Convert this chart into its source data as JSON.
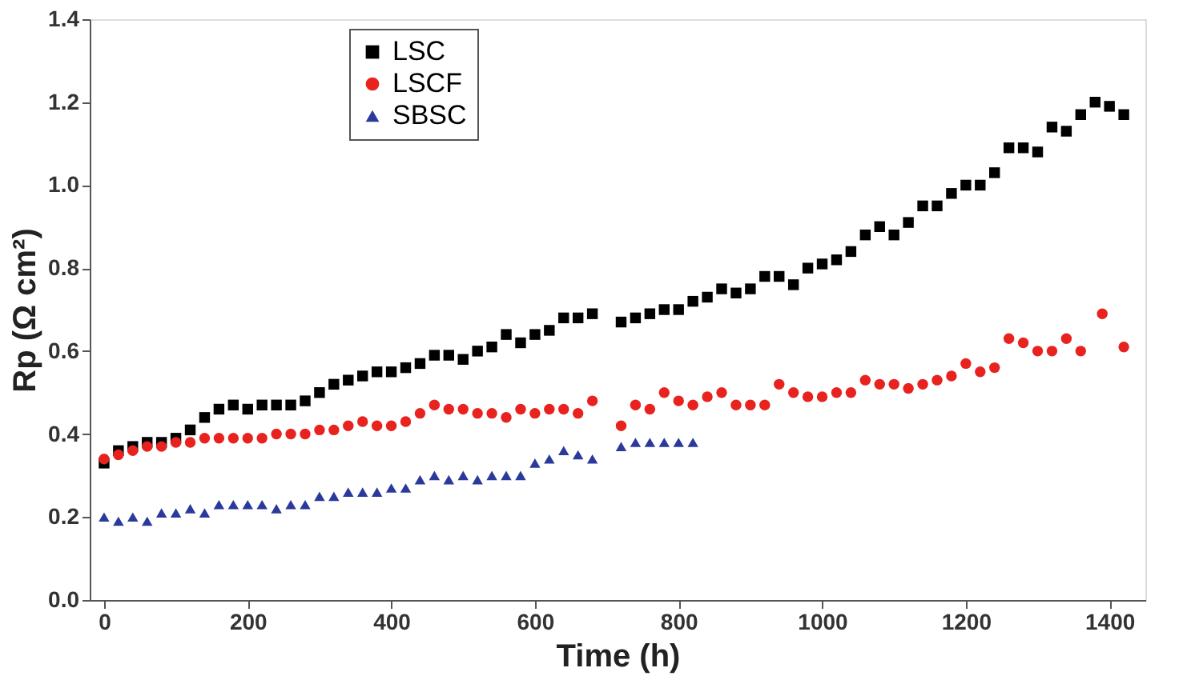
{
  "chart_data": {
    "type": "scatter",
    "xlabel": "Time (h)",
    "ylabel": "Rp (Ω cm²)",
    "xlim": [
      -20,
      1450
    ],
    "ylim": [
      0,
      1.4
    ],
    "xticks": [
      0,
      200,
      400,
      600,
      800,
      1000,
      1200,
      1400
    ],
    "yticks": [
      {
        "value": 0,
        "label": "0.0"
      },
      0.2,
      0.4,
      0.6,
      0.8,
      {
        "value": 1,
        "label": "1.0"
      },
      1.2,
      1.4
    ],
    "grid": false,
    "legend": "top",
    "series": [
      {
        "name": "LSC",
        "color": "#000000",
        "marker": "square",
        "x": [
          0,
          20,
          40,
          60,
          80,
          100,
          120,
          140,
          160,
          180,
          200,
          220,
          240,
          260,
          280,
          300,
          320,
          340,
          360,
          380,
          400,
          420,
          440,
          460,
          480,
          500,
          520,
          540,
          560,
          580,
          600,
          620,
          640,
          660,
          680,
          720,
          740,
          760,
          780,
          800,
          820,
          840,
          860,
          880,
          900,
          920,
          940,
          960,
          980,
          1000,
          1020,
          1040,
          1060,
          1080,
          1100,
          1120,
          1140,
          1160,
          1180,
          1200,
          1220,
          1240,
          1260,
          1280,
          1300,
          1320,
          1340,
          1360,
          1380,
          1400,
          1420
        ],
        "values": [
          0.33,
          0.36,
          0.37,
          0.38,
          0.38,
          0.39,
          0.41,
          0.44,
          0.46,
          0.47,
          0.46,
          0.47,
          0.47,
          0.47,
          0.48,
          0.5,
          0.52,
          0.53,
          0.54,
          0.55,
          0.55,
          0.56,
          0.57,
          0.59,
          0.59,
          0.58,
          0.6,
          0.61,
          0.64,
          0.62,
          0.64,
          0.65,
          0.68,
          0.68,
          0.69,
          0.67,
          0.68,
          0.69,
          0.7,
          0.7,
          0.72,
          0.73,
          0.75,
          0.74,
          0.75,
          0.78,
          0.78,
          0.76,
          0.8,
          0.81,
          0.82,
          0.84,
          0.88,
          0.9,
          0.88,
          0.91,
          0.95,
          0.95,
          0.98,
          1.0,
          1.0,
          1.03,
          1.09,
          1.09,
          1.08,
          1.14,
          1.13,
          1.17,
          1.2,
          1.19,
          1.17
        ]
      },
      {
        "name": "LSCF",
        "color": "#e8231f",
        "marker": "circle",
        "x": [
          0,
          20,
          40,
          60,
          80,
          100,
          120,
          140,
          160,
          180,
          200,
          220,
          240,
          260,
          280,
          300,
          320,
          340,
          360,
          380,
          400,
          420,
          440,
          460,
          480,
          500,
          520,
          540,
          560,
          580,
          600,
          620,
          640,
          660,
          680,
          720,
          740,
          760,
          780,
          800,
          820,
          840,
          860,
          880,
          900,
          920,
          940,
          960,
          980,
          1000,
          1020,
          1040,
          1060,
          1080,
          1100,
          1120,
          1140,
          1160,
          1180,
          1200,
          1220,
          1240,
          1260,
          1280,
          1300,
          1320,
          1340,
          1360,
          1390,
          1420
        ],
        "values": [
          0.34,
          0.35,
          0.36,
          0.37,
          0.37,
          0.38,
          0.38,
          0.39,
          0.39,
          0.39,
          0.39,
          0.39,
          0.4,
          0.4,
          0.4,
          0.41,
          0.41,
          0.42,
          0.43,
          0.42,
          0.42,
          0.43,
          0.45,
          0.47,
          0.46,
          0.46,
          0.45,
          0.45,
          0.44,
          0.46,
          0.45,
          0.46,
          0.46,
          0.45,
          0.48,
          0.42,
          0.47,
          0.46,
          0.5,
          0.48,
          0.47,
          0.49,
          0.5,
          0.47,
          0.47,
          0.47,
          0.52,
          0.5,
          0.49,
          0.49,
          0.5,
          0.5,
          0.53,
          0.52,
          0.52,
          0.51,
          0.52,
          0.53,
          0.54,
          0.57,
          0.55,
          0.56,
          0.63,
          0.62,
          0.6,
          0.6,
          0.63,
          0.6,
          0.69,
          0.61
        ]
      },
      {
        "name": "SBSC",
        "color": "#2b3a9a",
        "marker": "triangle",
        "x": [
          0,
          20,
          40,
          60,
          80,
          100,
          120,
          140,
          160,
          180,
          200,
          220,
          240,
          260,
          280,
          300,
          320,
          340,
          360,
          380,
          400,
          420,
          440,
          460,
          480,
          500,
          520,
          540,
          560,
          580,
          600,
          620,
          640,
          660,
          680,
          720,
          740,
          760,
          780,
          800,
          820
        ],
        "values": [
          0.2,
          0.19,
          0.2,
          0.19,
          0.21,
          0.21,
          0.22,
          0.21,
          0.23,
          0.23,
          0.23,
          0.23,
          0.22,
          0.23,
          0.23,
          0.25,
          0.25,
          0.26,
          0.26,
          0.26,
          0.27,
          0.27,
          0.29,
          0.3,
          0.29,
          0.3,
          0.29,
          0.3,
          0.3,
          0.3,
          0.33,
          0.34,
          0.36,
          0.35,
          0.34,
          0.37,
          0.38,
          0.38,
          0.38,
          0.38,
          0.38
        ]
      }
    ]
  }
}
